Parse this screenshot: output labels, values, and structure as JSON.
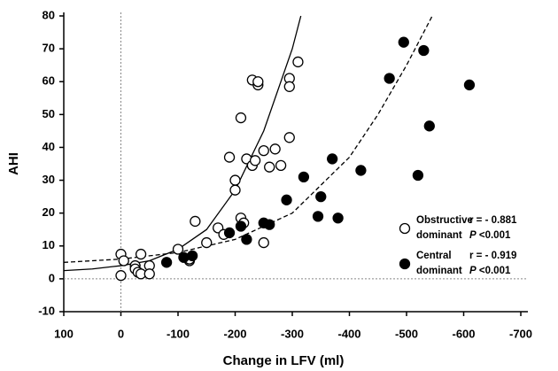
{
  "chart_data": {
    "type": "scatter",
    "xlabel": "Change in LFV (ml)",
    "ylabel": "AHI",
    "xlim": [
      100,
      -700
    ],
    "xticks": [
      100,
      0,
      -100,
      -200,
      -300,
      -400,
      -500,
      -600,
      -700
    ],
    "ylim": [
      -10,
      80
    ],
    "yticks": [
      -10,
      0,
      10,
      20,
      30,
      40,
      50,
      60,
      70,
      80
    ],
    "zero_lines": true,
    "series": [
      {
        "name": "Obstructive dominant",
        "color": "#000000",
        "fill": "#ffffff",
        "r_label": "r = - 0.881",
        "p_label": "P <0.001",
        "x": [
          0,
          0,
          -5,
          -25,
          -25,
          -30,
          -35,
          -35,
          -50,
          -50,
          -100,
          -120,
          -120,
          -130,
          -150,
          -170,
          -180,
          -190,
          -200,
          -200,
          -210,
          -210,
          -215,
          -220,
          -230,
          -230,
          -235,
          -240,
          -240,
          -250,
          -250,
          -260,
          -270,
          -280,
          -295,
          -295,
          -295,
          -310
        ],
        "values": [
          7.5,
          1,
          5.5,
          4,
          3,
          2,
          7.5,
          1.5,
          4,
          1.5,
          9,
          5.5,
          6,
          17.5,
          11,
          15.5,
          13.5,
          37,
          30,
          27,
          49,
          18.5,
          17,
          36.5,
          34.5,
          60.5,
          36,
          59,
          60,
          11,
          39,
          34,
          39.5,
          34.5,
          43,
          61,
          58.5,
          66
        ]
      },
      {
        "name": "Central dominant",
        "color": "#000000",
        "fill": "#000000",
        "r_label": "r = - 0.919",
        "p_label": "P <0.001",
        "x": [
          -80,
          -110,
          -125,
          -190,
          -210,
          -220,
          -250,
          -260,
          -290,
          -320,
          -345,
          -350,
          -370,
          -380,
          -420,
          -470,
          -495,
          -520,
          -530,
          -540,
          -610
        ],
        "values": [
          5,
          6.5,
          7,
          14,
          16,
          12,
          17,
          16.5,
          24,
          31,
          19,
          25,
          36.5,
          18.5,
          33,
          61,
          72,
          31.5,
          69.5,
          46.5,
          59
        ]
      }
    ],
    "curves": [
      {
        "dashed": false,
        "x": [
          100,
          50,
          0,
          -50,
          -100,
          -150,
          -200,
          -250,
          -300,
          -315
        ],
        "y": [
          2.5,
          3,
          4,
          5.5,
          9,
          15,
          27,
          45,
          70,
          80
        ]
      },
      {
        "dashed": true,
        "x": [
          100,
          0,
          -100,
          -200,
          -300,
          -400,
          -450,
          -500,
          -545
        ],
        "y": [
          5,
          6,
          8,
          12,
          20,
          37,
          50,
          65,
          80
        ]
      }
    ]
  }
}
